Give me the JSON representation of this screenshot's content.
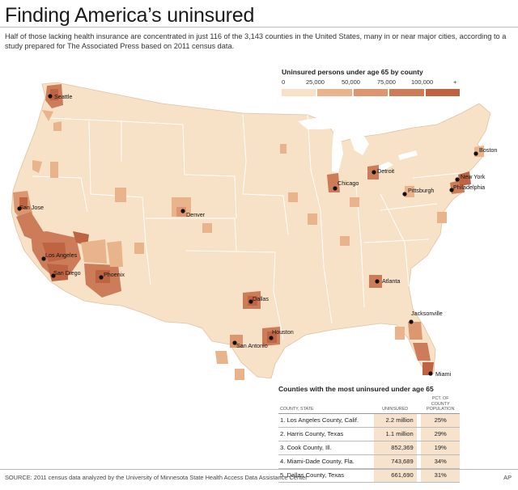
{
  "title": "Finding America’s uninsured",
  "subtitle": "Half of those lacking health insurance are concentrated in just 116 of the 3,143 counties in the United States, many in or near major cities, according to a study prepared for The Associated Press based on 2011 census data.",
  "legend": {
    "title": "Uninsured persons under age 65 by county",
    "ticks": [
      "0",
      "25,000",
      "50,000",
      "75,000",
      "100,000",
      "+"
    ],
    "colors": [
      "#f7e1c7",
      "#e9b48c",
      "#dc9670",
      "#cd7c59",
      "#bf6443"
    ]
  },
  "map_colors": {
    "land": "#f7e1c7",
    "border": "#ffffff",
    "water": "#ffffff"
  },
  "cities": [
    {
      "name": "Seattle"
    },
    {
      "name": "San Jose"
    },
    {
      "name": "Los Angeles"
    },
    {
      "name": "San Diego"
    },
    {
      "name": "Phoenix"
    },
    {
      "name": "Denver"
    },
    {
      "name": "Dallas"
    },
    {
      "name": "Houston"
    },
    {
      "name": "San Antonio"
    },
    {
      "name": "Chicago"
    },
    {
      "name": "Detroit"
    },
    {
      "name": "Pittsburgh"
    },
    {
      "name": "Philadelphia"
    },
    {
      "name": "New York"
    },
    {
      "name": "Boston"
    },
    {
      "name": "Atlanta"
    },
    {
      "name": "Jacksonville"
    },
    {
      "name": "Miami"
    }
  ],
  "table": {
    "title": "Counties with the most uninsured under age 65",
    "headers": [
      "COUNTY, STATE",
      "UNINSURED",
      "PCT. OF COUNTY POPULATION"
    ],
    "rows": [
      {
        "county": "1. Los Angeles County, Calif.",
        "uninsured": "2.2 million",
        "pct": "25%"
      },
      {
        "county": "2. Harris County, Texas",
        "uninsured": "1.1 million",
        "pct": "29%"
      },
      {
        "county": "3. Cook County, Ill.",
        "uninsured": "852,369",
        "pct": "19%"
      },
      {
        "county": "4. Miami-Dade County, Fla.",
        "uninsured": "743,689",
        "pct": "34%"
      },
      {
        "county": "5. Dallas County, Texas",
        "uninsured": "661,690",
        "pct": "31%"
      }
    ]
  },
  "source": "SOURCE: 2011 census data analyzed by the University of Minnesota State Health Access Data Assistance Center",
  "credit": "AP"
}
